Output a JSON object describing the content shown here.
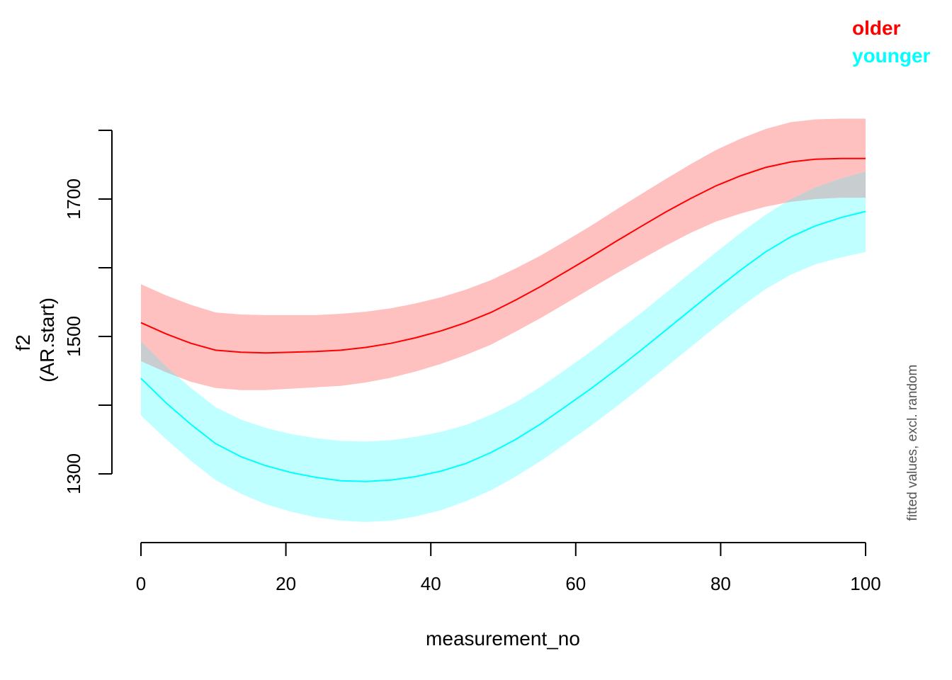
{
  "chart_data": {
    "type": "line",
    "xlabel": "measurement_no",
    "ylabel_lines": [
      "f2",
      "(AR.start)"
    ],
    "note": "fitted values, excl. random",
    "xlim": [
      0,
      100
    ],
    "ylim": [
      1200,
      1800
    ],
    "x_ticks": [
      0,
      20,
      40,
      60,
      80,
      100
    ],
    "y_ticks_labeled": [
      1300,
      1500,
      1700
    ],
    "y_ticks_all": [
      1300,
      1400,
      1500,
      1600,
      1700,
      1800
    ],
    "overlap_color": "#C8CDD0",
    "legend": [
      {
        "label": "older",
        "color": "#FF0000"
      },
      {
        "label": "younger",
        "color": "#00FFFF"
      }
    ],
    "x": [
      0,
      3.4,
      6.9,
      10.3,
      13.8,
      17.2,
      20.7,
      24.1,
      27.6,
      31,
      34.5,
      37.9,
      41.4,
      44.8,
      48.3,
      51.7,
      55.2,
      58.6,
      62.1,
      65.5,
      69,
      72.4,
      75.9,
      79.3,
      82.8,
      86.2,
      89.7,
      93.1,
      96.6,
      100
    ],
    "series": [
      {
        "name": "older",
        "line_color": "#FF0000",
        "band_color": "#FFC0C0",
        "fit": [
          1520,
          1504,
          1490,
          1480,
          1477,
          1476,
          1477,
          1478,
          1480,
          1484,
          1490,
          1498,
          1508,
          1520,
          1535,
          1553,
          1573,
          1594,
          1616,
          1638,
          1660,
          1681,
          1701,
          1719,
          1734,
          1746,
          1754,
          1758,
          1759,
          1759
        ],
        "lower": [
          1464,
          1448,
          1434,
          1425,
          1422,
          1422,
          1424,
          1426,
          1428,
          1433,
          1440,
          1449,
          1460,
          1473,
          1488,
          1507,
          1527,
          1548,
          1570,
          1591,
          1612,
          1632,
          1651,
          1667,
          1679,
          1689,
          1696,
          1700,
          1702,
          1702
        ],
        "upper": [
          1576,
          1560,
          1546,
          1535,
          1532,
          1531,
          1531,
          1531,
          1533,
          1536,
          1541,
          1548,
          1557,
          1568,
          1582,
          1599,
          1618,
          1639,
          1661,
          1684,
          1707,
          1729,
          1751,
          1771,
          1788,
          1802,
          1812,
          1816,
          1817,
          1817
        ]
      },
      {
        "name": "younger",
        "line_color": "#00FFFF",
        "band_color": "#C0FFFF",
        "fit": [
          1439,
          1404,
          1372,
          1344,
          1325,
          1312,
          1302,
          1295,
          1290,
          1289,
          1291,
          1296,
          1304,
          1315,
          1331,
          1350,
          1373,
          1398,
          1424,
          1451,
          1480,
          1509,
          1539,
          1568,
          1597,
          1623,
          1645,
          1661,
          1673,
          1682
        ],
        "lower": [
          1385,
          1351,
          1319,
          1291,
          1271,
          1256,
          1245,
          1237,
          1232,
          1230,
          1232,
          1238,
          1247,
          1260,
          1276,
          1296,
          1319,
          1344,
          1370,
          1397,
          1426,
          1455,
          1485,
          1514,
          1543,
          1569,
          1590,
          1605,
          1615,
          1623
        ],
        "upper": [
          1493,
          1457,
          1425,
          1397,
          1379,
          1367,
          1358,
          1352,
          1348,
          1347,
          1349,
          1354,
          1361,
          1371,
          1386,
          1404,
          1427,
          1452,
          1478,
          1506,
          1534,
          1563,
          1593,
          1622,
          1651,
          1677,
          1700,
          1717,
          1730,
          1740
        ]
      }
    ]
  }
}
